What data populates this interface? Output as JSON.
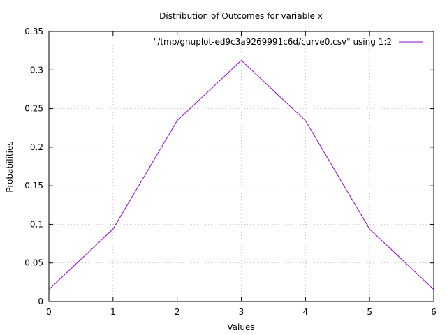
{
  "chart_data": {
    "type": "line",
    "title": "Distribution of Outcomes for variable x",
    "xlabel": "Values",
    "ylabel": "Probabilities",
    "xlim": [
      0,
      6
    ],
    "ylim": [
      0,
      0.35
    ],
    "xticks": [
      "0",
      "1",
      "2",
      "3",
      "4",
      "5",
      "6"
    ],
    "yticks": [
      "0",
      "0.05",
      "0.1",
      "0.15",
      "0.2",
      "0.25",
      "0.3",
      "0.35"
    ],
    "grid": true,
    "legend_position": "top-right",
    "series": [
      {
        "name": "\"/tmp/gnuplot-ed9c3a9269991c6d/curve0.csv\" using 1:2",
        "color": "#9400d3",
        "x": [
          0,
          1,
          2,
          3,
          4,
          5,
          6
        ],
        "y": [
          0.015625,
          0.09375,
          0.234375,
          0.3125,
          0.234375,
          0.09375,
          0.015625
        ]
      }
    ]
  }
}
